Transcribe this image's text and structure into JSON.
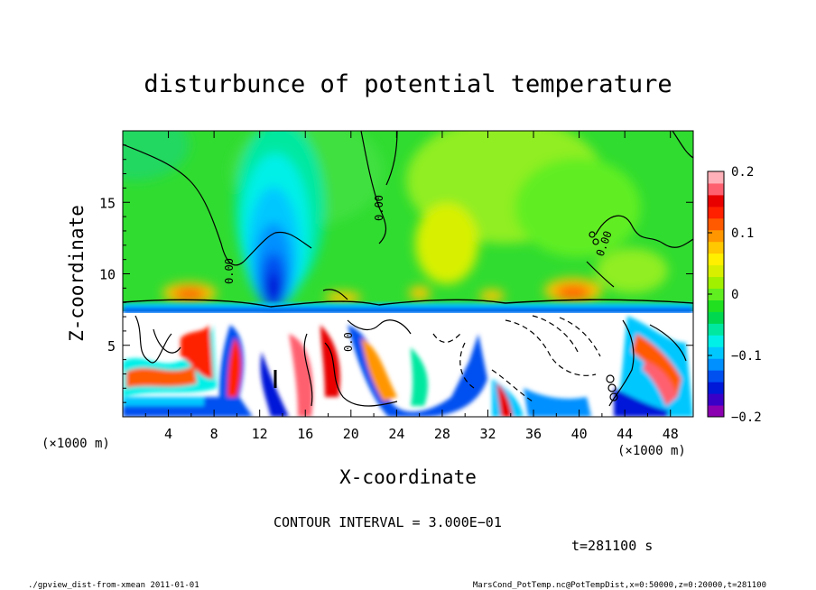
{
  "chart_data": {
    "type": "heatmap",
    "title": "disturbunce of potential temperature",
    "xlabel": "X-coordinate",
    "ylabel": "Z-coordinate",
    "x_unit_label": "(×1000 m)",
    "y_unit_label": "(×1000 m)",
    "xlim": [
      0,
      50
    ],
    "ylim": [
      0,
      20
    ],
    "x_ticks": [
      {
        "value": 4,
        "label": "4"
      },
      {
        "value": 8,
        "label": "8"
      },
      {
        "value": 12,
        "label": "12"
      },
      {
        "value": 16,
        "label": "16"
      },
      {
        "value": 20,
        "label": "20"
      },
      {
        "value": 24,
        "label": "24"
      },
      {
        "value": 28,
        "label": "28"
      },
      {
        "value": 32,
        "label": "32"
      },
      {
        "value": 36,
        "label": "36"
      },
      {
        "value": 40,
        "label": "40"
      },
      {
        "value": 44,
        "label": "44"
      },
      {
        "value": 48,
        "label": "48"
      }
    ],
    "y_ticks": [
      {
        "value": 5,
        "label": "5"
      },
      {
        "value": 10,
        "label": "10"
      },
      {
        "value": 15,
        "label": "15"
      }
    ],
    "colorbar": {
      "min": -0.2,
      "max": 0.2,
      "ticks": [
        {
          "value": 0.2,
          "label": "0.2"
        },
        {
          "value": 0.1,
          "label": "0.1"
        },
        {
          "value": 0,
          "label": "0"
        },
        {
          "value": -0.1,
          "label": "−0.1"
        },
        {
          "value": -0.2,
          "label": "−0.2"
        }
      ],
      "colors": [
        "#8b00b0",
        "#3a00c8",
        "#0018d8",
        "#0050f0",
        "#0090ff",
        "#00c8ff",
        "#00f0e8",
        "#00e8a0",
        "#00d850",
        "#20e020",
        "#60ee20",
        "#a0f000",
        "#d8f000",
        "#fff000",
        "#ffc800",
        "#ff9600",
        "#ff5a00",
        "#ff2000",
        "#e80000",
        "#ff6070",
        "#ffb0b8"
      ]
    },
    "contour_labels": [
      "0.00",
      "0.00",
      "0.00",
      "0.0"
    ],
    "contour_interval_text": "CONTOUR INTERVAL = 3.000E−01",
    "time_text": "t=281100 s"
  },
  "footer": {
    "left": "./gpview_dist-from-xmean   2011-01-01",
    "right": "MarsCond_PotTemp.nc@PotTempDist,x=0:50000,z=0:20000,t=281100"
  }
}
